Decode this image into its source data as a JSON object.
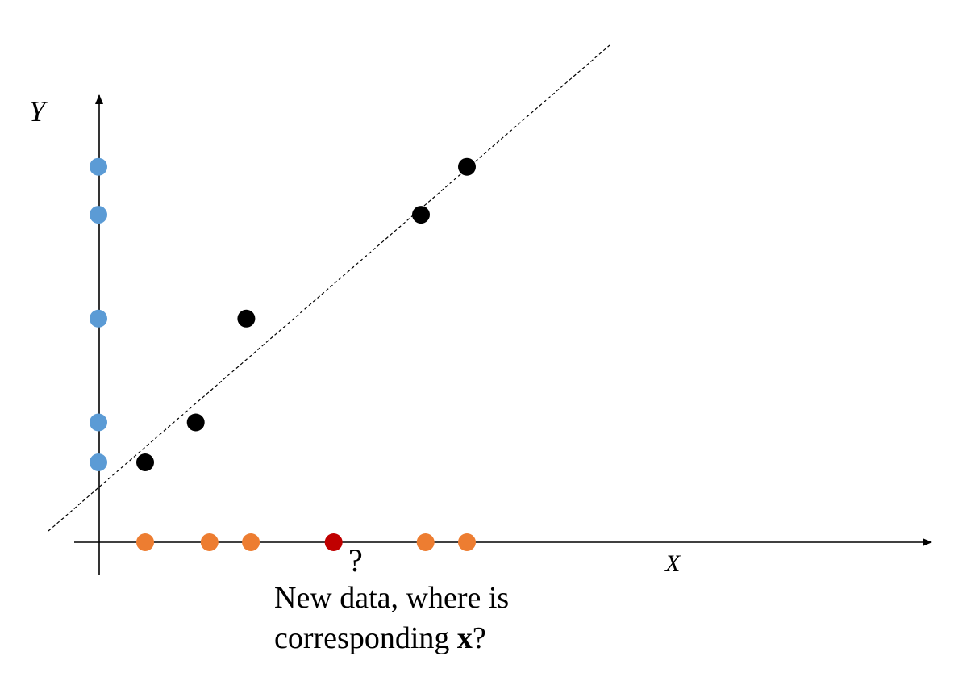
{
  "diagram": {
    "y_axis_label": "Y",
    "x_axis_label": "X",
    "question_mark": "?",
    "caption_line1": "New data, where is",
    "caption_line2_prefix": "corresponding ",
    "caption_line2_bold": "x",
    "caption_line2_suffix": "?"
  },
  "colors": {
    "axis": "#000000",
    "fit_line": "#000000",
    "data_point": "#000000",
    "y_projection": "#5b9bd5",
    "x_projection": "#ed7d31",
    "new_point": "#c00000"
  },
  "points": {
    "data": [
      {
        "x": 1.0,
        "y": 1.0
      },
      {
        "x": 2.1,
        "y": 1.5
      },
      {
        "x": 3.2,
        "y": 2.8
      },
      {
        "x": 7.0,
        "y": 4.1
      },
      {
        "x": 8.0,
        "y": 4.7
      }
    ],
    "y_projections": [
      1.0,
      1.5,
      2.8,
      4.1,
      4.7
    ],
    "x_projections": [
      1.0,
      2.4,
      3.3,
      7.1,
      8.0
    ],
    "new_x": 5.1
  },
  "fit_line": {
    "slope": 0.55,
    "intercept": 0.2
  }
}
